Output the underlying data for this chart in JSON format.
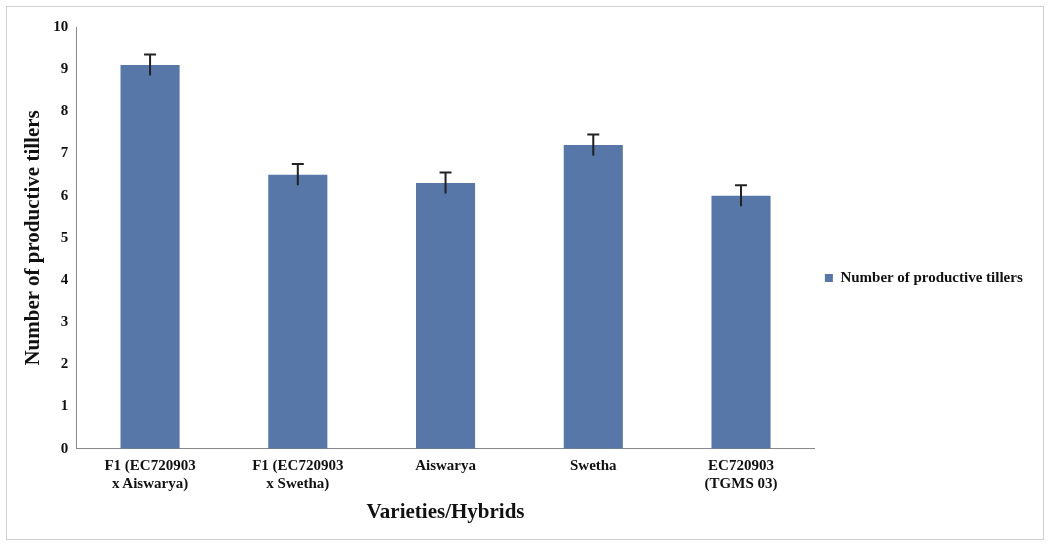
{
  "chart_data": {
    "type": "bar",
    "xlabel": "Varieties/Hybrids",
    "ylabel": "Number of productive tillers",
    "categories": [
      "F1 (EC720903 x Aiswarya)",
      "F1 (EC720903 x Swetha)",
      "Aiswarya",
      "Swetha",
      "EC720903 (TGMS 03)"
    ],
    "series": [
      {
        "name": "Number of productive tillers",
        "color": "#5677a8",
        "values": [
          9.1,
          6.5,
          6.3,
          7.2,
          6.0
        ],
        "errors": [
          0.25,
          0.25,
          0.25,
          0.25,
          0.25
        ]
      }
    ],
    "ylim": [
      0,
      10
    ],
    "yticks": [
      0,
      1,
      2,
      3,
      4,
      5,
      6,
      7,
      8,
      9,
      10
    ],
    "grid": false,
    "legend": "right"
  }
}
